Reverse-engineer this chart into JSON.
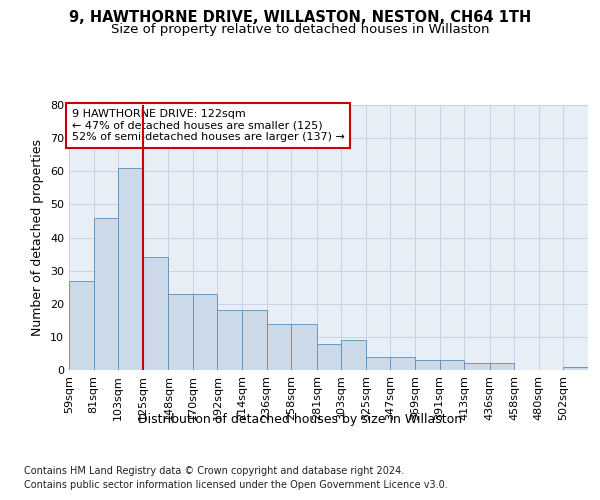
{
  "title": "9, HAWTHORNE DRIVE, WILLASTON, NESTON, CH64 1TH",
  "subtitle": "Size of property relative to detached houses in Willaston",
  "xlabel": "Distribution of detached houses by size in Willaston",
  "ylabel": "Number of detached properties",
  "categories": [
    "59sqm",
    "81sqm",
    "103sqm",
    "125sqm",
    "148sqm",
    "170sqm",
    "192sqm",
    "214sqm",
    "236sqm",
    "258sqm",
    "281sqm",
    "303sqm",
    "325sqm",
    "347sqm",
    "369sqm",
    "391sqm",
    "413sqm",
    "436sqm",
    "458sqm",
    "480sqm",
    "502sqm"
  ],
  "bin_edges": [
    59,
    81,
    103,
    125,
    148,
    170,
    192,
    214,
    236,
    258,
    281,
    303,
    325,
    347,
    369,
    391,
    413,
    436,
    458,
    480,
    502,
    524
  ],
  "values": [
    27,
    46,
    61,
    34,
    23,
    23,
    18,
    18,
    14,
    14,
    8,
    9,
    4,
    4,
    3,
    3,
    2,
    2,
    0,
    0,
    1
  ],
  "bar_color": "#ccd9e8",
  "bar_edge_color": "#5b8db8",
  "vline_x": 125,
  "vline_color": "#cc0000",
  "annotation_text": "9 HAWTHORNE DRIVE: 122sqm\n← 47% of detached houses are smaller (125)\n52% of semi-detached houses are larger (137) →",
  "annotation_box_color": "#ffffff",
  "annotation_box_edge": "#cc0000",
  "ylim": [
    0,
    80
  ],
  "yticks": [
    0,
    10,
    20,
    30,
    40,
    50,
    60,
    70,
    80
  ],
  "grid_color": "#c8d4e4",
  "background_color": "#e8eef6",
  "footer_line1": "Contains HM Land Registry data © Crown copyright and database right 2024.",
  "footer_line2": "Contains public sector information licensed under the Open Government Licence v3.0.",
  "title_fontsize": 10.5,
  "subtitle_fontsize": 9.5,
  "ylabel_fontsize": 9,
  "tick_fontsize": 8,
  "xlabel_fontsize": 9,
  "footer_fontsize": 7.0,
  "annotation_fontsize": 8
}
